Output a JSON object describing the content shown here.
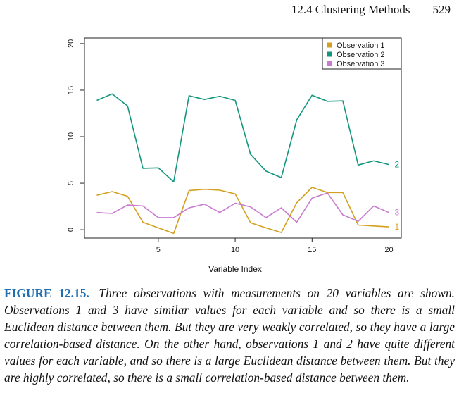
{
  "header": {
    "section": "12.4 Clustering Methods",
    "page": "529"
  },
  "chart_data": {
    "type": "line",
    "xlabel": "Variable Index",
    "ylabel": "",
    "xlim": [
      0.2,
      20.8
    ],
    "ylim": [
      -0.9,
      20.6
    ],
    "xticks": [
      5,
      10,
      15,
      20
    ],
    "yticks": [
      0,
      5,
      10,
      15,
      20
    ],
    "grid": false,
    "legend_position": "top-right",
    "x": [
      1,
      2,
      3,
      4,
      5,
      6,
      7,
      8,
      9,
      10,
      11,
      12,
      13,
      14,
      15,
      16,
      17,
      18,
      19,
      20
    ],
    "series": [
      {
        "name": "Observation 1",
        "end_label": "1",
        "color": "#D4A020",
        "values": [
          3.7,
          4.1,
          3.6,
          0.8,
          0.2,
          -0.4,
          4.2,
          4.35,
          4.25,
          3.85,
          0.75,
          0.2,
          -0.3,
          2.9,
          4.55,
          4.0,
          4.0,
          0.5,
          0.4,
          0.3
        ]
      },
      {
        "name": "Observation 2",
        "end_label": "2",
        "color": "#14967E",
        "values": [
          13.9,
          14.6,
          13.3,
          6.6,
          6.65,
          5.15,
          14.4,
          14.0,
          14.35,
          13.9,
          8.1,
          6.3,
          5.6,
          11.8,
          14.45,
          13.8,
          13.85,
          6.95,
          7.4,
          7.0
        ]
      },
      {
        "name": "Observation 3",
        "end_label": "3",
        "color": "#C97AD0",
        "values": [
          1.85,
          1.75,
          2.65,
          2.55,
          1.3,
          1.3,
          2.35,
          2.75,
          1.85,
          2.85,
          2.45,
          1.3,
          2.35,
          0.8,
          3.4,
          3.95,
          1.6,
          0.9,
          2.55,
          1.85
        ]
      }
    ]
  },
  "caption": {
    "label": "FIGURE 12.15.",
    "text": "Three observations with measurements on 20 variables are shown. Observations 1 and 3 have similar values for each variable and so there is a small Euclidean distance between them. But they are very weakly correlated, so they have a large correlation-based distance. On the other hand, observations 1 and 2 have quite different values for each variable, and so there is a large Euclidean distance between them. But they are highly correlated, so there is a small correlation-based distance between them."
  }
}
